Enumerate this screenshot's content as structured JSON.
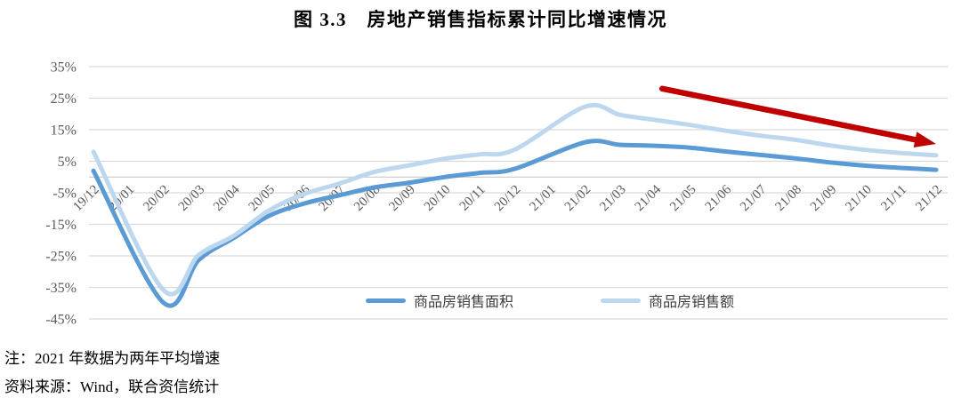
{
  "figure": {
    "title": "图 3.3　房地产销售指标累计同比增速情况",
    "note": "注：2021 年数据为两年平均增速",
    "source": "资料来源：Wind，联合资信统计"
  },
  "chart_data": {
    "type": "line",
    "title": "图 3.3　房地产销售指标累计同比增速情况",
    "categories": [
      "19/12",
      "20/01",
      "20/02",
      "20/03",
      "20/04",
      "20/05",
      "20/06",
      "20/07",
      "20/08",
      "20/09",
      "20/10",
      "20/11",
      "20/12",
      "21/01",
      "21/02",
      "21/03",
      "21/04",
      "21/05",
      "21/06",
      "21/07",
      "21/08",
      "21/09",
      "21/10",
      "21/11",
      "21/12"
    ],
    "series": [
      {
        "name": "商品房销售面积",
        "color": "#5B9BD5",
        "values": [
          2.0,
          null,
          -39.9,
          -26.3,
          -19.3,
          -12.3,
          -8.4,
          -5.8,
          -3.3,
          -1.8,
          0.0,
          1.3,
          2.6,
          null,
          11.0,
          10.2,
          9.9,
          9.3,
          8.1,
          7.0,
          5.9,
          4.6,
          3.6,
          2.9,
          2.3
        ]
      },
      {
        "name": "商品房销售额",
        "color": "#BDD7EE",
        "values": [
          8.0,
          null,
          -35.9,
          -24.7,
          -18.6,
          -10.6,
          -5.4,
          -2.1,
          1.6,
          3.7,
          5.8,
          7.2,
          8.7,
          null,
          22.3,
          19.7,
          18.1,
          16.5,
          14.7,
          13.1,
          11.8,
          10.0,
          8.6,
          7.6,
          6.9
        ]
      }
    ],
    "ylim": [
      -45,
      35
    ],
    "ytick_step": 10,
    "ytick_labels": [
      "35%",
      "25%",
      "15%",
      "5%",
      "-5%",
      "-15%",
      "-25%",
      "-35%",
      "-45%"
    ],
    "xtick_rotation_deg": 45,
    "grid": "horizontal",
    "gridline_color": "#D9D9D9",
    "zero_axis_color": "#C9C9C9",
    "axis_label_color": "#595959",
    "legend_position": "bottom-center",
    "line_smoothing": true,
    "annotation": {
      "type": "arrow",
      "color": "#C00000",
      "from": {
        "index": 16.2,
        "value": 28.0
      },
      "to": {
        "index": 24.0,
        "value": 10.5
      }
    }
  }
}
